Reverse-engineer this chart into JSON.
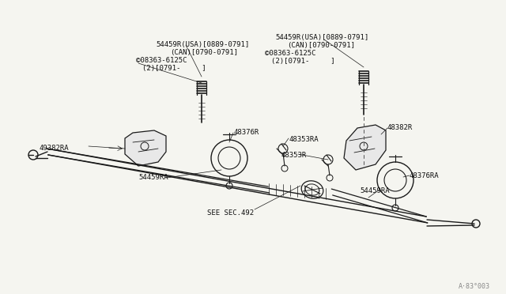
{
  "bg_color": "#f5f5f0",
  "line_color": "#1a1a1a",
  "text_color": "#111111",
  "fig_width": 6.4,
  "fig_height": 3.72,
  "dpi": 100,
  "watermark": "A·83°003",
  "label_54459R_L1": "54459R(USA)[0889-0791]",
  "label_54459R_L2": "(CAN)[0790-0791]",
  "label_bolt_L1": "©08363-6125C",
  "label_bolt_L2": "(2)[0791-     ]",
  "label_54459R_R1": "54459R(USA)[0889-0791]",
  "label_54459R_R2": "(CAN)[0790-0791]",
  "label_bolt_R1": "©08363-6125C",
  "label_bolt_R2": "(2)[0791-     ]",
  "label_49382RA": "49382RA",
  "label_48376R": "48376R",
  "label_48353RA": "48353RA",
  "label_48353R": "48353R",
  "label_48382R": "48382R",
  "label_54459RA_L": "54459RA",
  "label_48376RA": "48376RA",
  "label_54459RA_R": "54459RA",
  "label_see_sec": "SEE SEC.492"
}
